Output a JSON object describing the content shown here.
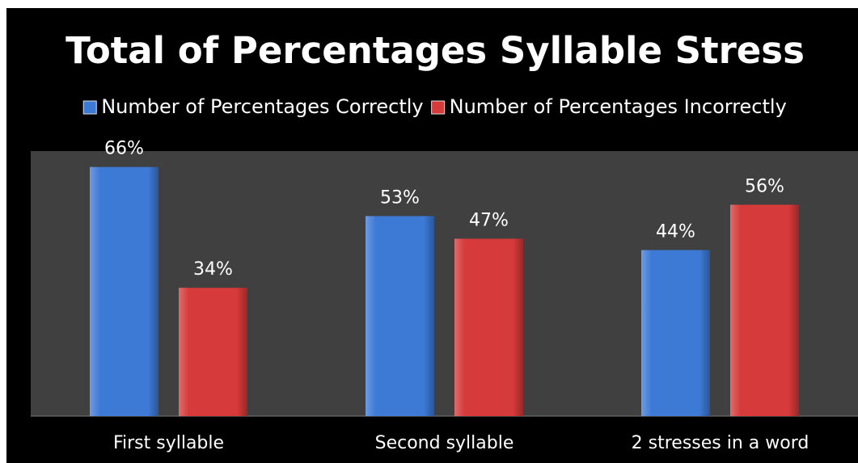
{
  "chart_data": {
    "type": "bar",
    "title": "Total of Percentages Syllable Stress",
    "categories": [
      "First syllable",
      "Second syllable",
      "2 stresses in a word"
    ],
    "series": [
      {
        "name": "Number of Percentages Correctly",
        "color": "#3d7ad6",
        "values": [
          66,
          53,
          44
        ],
        "value_labels": [
          "66%",
          "53%",
          "44%"
        ]
      },
      {
        "name": "Number of Percentages Incorrectly",
        "color": "#d63a3a",
        "values": [
          34,
          47,
          56
        ],
        "value_labels": [
          "34%",
          "47%",
          "56%"
        ]
      }
    ],
    "legend": "top",
    "grid": false
  }
}
